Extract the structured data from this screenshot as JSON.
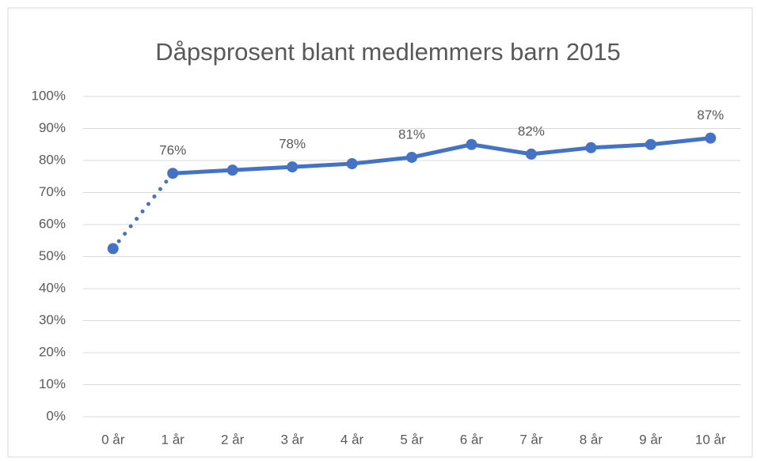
{
  "chart_data": {
    "type": "line",
    "title": "Dåpsprosent blant medlemmers barn 2015",
    "categories": [
      "0 år",
      "1 år",
      "2 år",
      "3 år",
      "4 år",
      "5 år",
      "6 år",
      "7 år",
      "8 år",
      "9 år",
      "10 år"
    ],
    "values": [
      52.5,
      76,
      77,
      78,
      79,
      81,
      85,
      82,
      84,
      85,
      87
    ],
    "value_labels": [
      null,
      "76%",
      null,
      "78%",
      null,
      "81%",
      null,
      "82%",
      null,
      null,
      "87%"
    ],
    "color": "#4472c4",
    "dotted_first_segment": true,
    "ylim": [
      0,
      100
    ],
    "yticks": [
      {
        "value": 0,
        "label": "0%"
      },
      {
        "value": 10,
        "label": "10%"
      },
      {
        "value": 20,
        "label": "20%"
      },
      {
        "value": 30,
        "label": "30%"
      },
      {
        "value": 40,
        "label": "40%"
      },
      {
        "value": 50,
        "label": "50%"
      },
      {
        "value": 60,
        "label": "60%"
      },
      {
        "value": 70,
        "label": "70%"
      },
      {
        "value": 80,
        "label": "80%"
      },
      {
        "value": 90,
        "label": "90%"
      },
      {
        "value": 100,
        "label": "100%"
      }
    ],
    "grid": true
  }
}
